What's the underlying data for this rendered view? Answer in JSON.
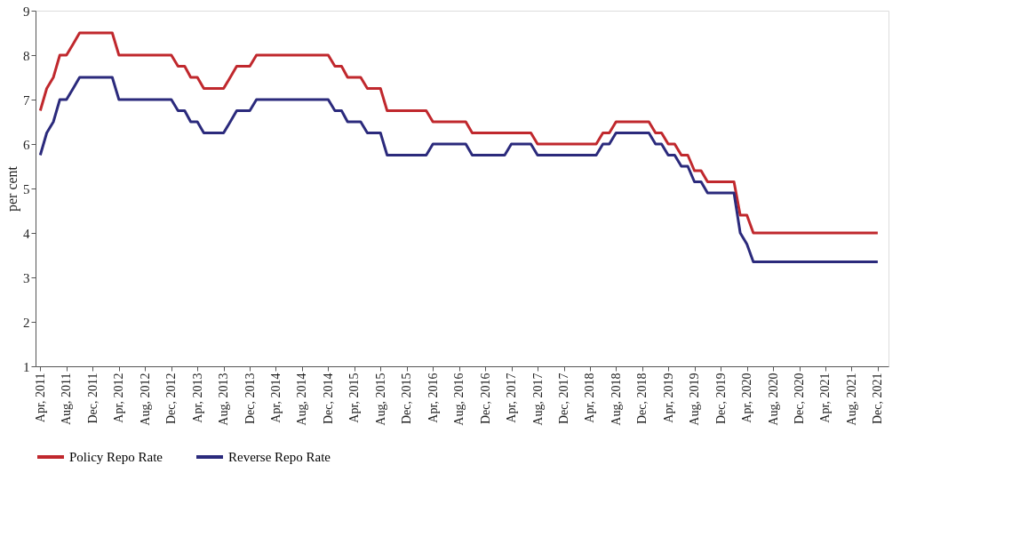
{
  "chart_data": {
    "type": "line",
    "ylabel": "per cent",
    "x": [
      "2011-04",
      "2011-05",
      "2011-06",
      "2011-07",
      "2011-08",
      "2011-09",
      "2011-10",
      "2011-11",
      "2011-12",
      "2012-01",
      "2012-02",
      "2012-03",
      "2012-04",
      "2012-05",
      "2012-06",
      "2012-07",
      "2012-08",
      "2012-09",
      "2012-10",
      "2012-11",
      "2012-12",
      "2013-01",
      "2013-02",
      "2013-03",
      "2013-04",
      "2013-05",
      "2013-06",
      "2013-07",
      "2013-08",
      "2013-09",
      "2013-10",
      "2013-11",
      "2013-12",
      "2014-01",
      "2014-02",
      "2014-03",
      "2014-04",
      "2014-05",
      "2014-06",
      "2014-07",
      "2014-08",
      "2014-09",
      "2014-10",
      "2014-11",
      "2014-12",
      "2015-01",
      "2015-02",
      "2015-03",
      "2015-04",
      "2015-05",
      "2015-06",
      "2015-07",
      "2015-08",
      "2015-09",
      "2015-10",
      "2015-11",
      "2015-12",
      "2016-01",
      "2016-02",
      "2016-03",
      "2016-04",
      "2016-05",
      "2016-06",
      "2016-07",
      "2016-08",
      "2016-09",
      "2016-10",
      "2016-11",
      "2016-12",
      "2017-01",
      "2017-02",
      "2017-03",
      "2017-04",
      "2017-05",
      "2017-06",
      "2017-07",
      "2017-08",
      "2017-09",
      "2017-10",
      "2017-11",
      "2017-12",
      "2018-01",
      "2018-02",
      "2018-03",
      "2018-04",
      "2018-05",
      "2018-06",
      "2018-07",
      "2018-08",
      "2018-09",
      "2018-10",
      "2018-11",
      "2018-12",
      "2019-01",
      "2019-02",
      "2019-03",
      "2019-04",
      "2019-05",
      "2019-06",
      "2019-07",
      "2019-08",
      "2019-09",
      "2019-10",
      "2019-11",
      "2019-12",
      "2020-01",
      "2020-02",
      "2020-03",
      "2020-04",
      "2020-05",
      "2020-06",
      "2020-07",
      "2020-08",
      "2020-09",
      "2020-10",
      "2020-11",
      "2020-12",
      "2021-01",
      "2021-02",
      "2021-03",
      "2021-04",
      "2021-05",
      "2021-06",
      "2021-07",
      "2021-08",
      "2021-09",
      "2021-10",
      "2021-11",
      "2021-12"
    ],
    "series": [
      {
        "name": "Policy Repo Rate",
        "color": "#c0282d",
        "values": [
          6.75,
          7.25,
          7.5,
          8,
          8,
          8.25,
          8.5,
          8.5,
          8.5,
          8.5,
          8.5,
          8.5,
          8,
          8,
          8,
          8,
          8,
          8,
          8,
          8,
          8,
          7.75,
          7.75,
          7.5,
          7.5,
          7.25,
          7.25,
          7.25,
          7.25,
          7.5,
          7.75,
          7.75,
          7.75,
          8,
          8,
          8,
          8,
          8,
          8,
          8,
          8,
          8,
          8,
          8,
          8,
          7.75,
          7.75,
          7.5,
          7.5,
          7.5,
          7.25,
          7.25,
          7.25,
          6.75,
          6.75,
          6.75,
          6.75,
          6.75,
          6.75,
          6.75,
          6.5,
          6.5,
          6.5,
          6.5,
          6.5,
          6.5,
          6.25,
          6.25,
          6.25,
          6.25,
          6.25,
          6.25,
          6.25,
          6.25,
          6.25,
          6.25,
          6,
          6,
          6,
          6,
          6,
          6,
          6,
          6,
          6,
          6,
          6.25,
          6.25,
          6.5,
          6.5,
          6.5,
          6.5,
          6.5,
          6.5,
          6.25,
          6.25,
          6,
          6,
          5.75,
          5.75,
          5.4,
          5.4,
          5.15,
          5.15,
          5.15,
          5.15,
          5.15,
          4.4,
          4.4,
          4,
          4,
          4,
          4,
          4,
          4,
          4,
          4,
          4,
          4,
          4,
          4,
          4,
          4,
          4,
          4,
          4,
          4,
          4,
          4
        ]
      },
      {
        "name": "Reverse Repo Rate",
        "color": "#2b2a7c",
        "values": [
          5.75,
          6.25,
          6.5,
          7,
          7,
          7.25,
          7.5,
          7.5,
          7.5,
          7.5,
          7.5,
          7.5,
          7,
          7,
          7,
          7,
          7,
          7,
          7,
          7,
          7,
          6.75,
          6.75,
          6.5,
          6.5,
          6.25,
          6.25,
          6.25,
          6.25,
          6.5,
          6.75,
          6.75,
          6.75,
          7,
          7,
          7,
          7,
          7,
          7,
          7,
          7,
          7,
          7,
          7,
          7,
          6.75,
          6.75,
          6.5,
          6.5,
          6.5,
          6.25,
          6.25,
          6.25,
          5.75,
          5.75,
          5.75,
          5.75,
          5.75,
          5.75,
          5.75,
          6,
          6,
          6,
          6,
          6,
          6,
          5.75,
          5.75,
          5.75,
          5.75,
          5.75,
          5.75,
          6,
          6,
          6,
          6,
          5.75,
          5.75,
          5.75,
          5.75,
          5.75,
          5.75,
          5.75,
          5.75,
          5.75,
          5.75,
          6,
          6,
          6.25,
          6.25,
          6.25,
          6.25,
          6.25,
          6.25,
          6,
          6,
          5.75,
          5.75,
          5.5,
          5.5,
          5.15,
          5.15,
          4.9,
          4.9,
          4.9,
          4.9,
          4.9,
          4,
          3.75,
          3.35,
          3.35,
          3.35,
          3.35,
          3.35,
          3.35,
          3.35,
          3.35,
          3.35,
          3.35,
          3.35,
          3.35,
          3.35,
          3.35,
          3.35,
          3.35,
          3.35,
          3.35,
          3.35,
          3.35
        ]
      }
    ],
    "xlim": [
      "2011-03-10",
      "2022-01-20"
    ],
    "xticks": [
      {
        "value": "2011-04",
        "label": "Apr, 2011"
      },
      {
        "value": "2011-08",
        "label": "Aug, 2011"
      },
      {
        "value": "2011-12",
        "label": "Dec, 2011"
      },
      {
        "value": "2012-04",
        "label": "Apr, 2012"
      },
      {
        "value": "2012-08",
        "label": "Aug, 2012"
      },
      {
        "value": "2012-12",
        "label": "Dec, 2012"
      },
      {
        "value": "2013-04",
        "label": "Apr, 2013"
      },
      {
        "value": "2013-08",
        "label": "Aug, 2013"
      },
      {
        "value": "2013-12",
        "label": "Dec, 2013"
      },
      {
        "value": "2014-04",
        "label": "Apr, 2014"
      },
      {
        "value": "2014-08",
        "label": "Aug, 2014"
      },
      {
        "value": "2014-12",
        "label": "Dec, 2014"
      },
      {
        "value": "2015-04",
        "label": "Apr, 2015"
      },
      {
        "value": "2015-08",
        "label": "Aug, 2015"
      },
      {
        "value": "2015-12",
        "label": "Dec, 2015"
      },
      {
        "value": "2016-04",
        "label": "Apr, 2016"
      },
      {
        "value": "2016-08",
        "label": "Aug, 2016"
      },
      {
        "value": "2016-12",
        "label": "Dec, 2016"
      },
      {
        "value": "2017-04",
        "label": "Apr, 2017"
      },
      {
        "value": "2017-08",
        "label": "Aug, 2017"
      },
      {
        "value": "2017-12",
        "label": "Dec, 2017"
      },
      {
        "value": "2018-04",
        "label": "Apr, 2018"
      },
      {
        "value": "2018-08",
        "label": "Aug, 2018"
      },
      {
        "value": "2018-12",
        "label": "Dec, 2018"
      },
      {
        "value": "2019-04",
        "label": "Apr, 2019"
      },
      {
        "value": "2019-08",
        "label": "Aug, 2019"
      },
      {
        "value": "2019-12",
        "label": "Dec, 2019"
      },
      {
        "value": "2020-04",
        "label": "Apr, 2020"
      },
      {
        "value": "2020-08",
        "label": "Aug, 2020"
      },
      {
        "value": "2020-12",
        "label": "Dec, 2020"
      },
      {
        "value": "2021-04",
        "label": "Apr, 2021"
      },
      {
        "value": "2021-08",
        "label": "Aug, 2021"
      },
      {
        "value": "2021-12",
        "label": "Dec, 2021"
      }
    ],
    "ylim": [
      1,
      9
    ],
    "yticks": [
      1,
      2,
      3,
      4,
      5,
      6,
      7,
      8,
      9
    ],
    "grid": false,
    "legend": "bottom",
    "marker": "none",
    "line_style": "solid"
  }
}
